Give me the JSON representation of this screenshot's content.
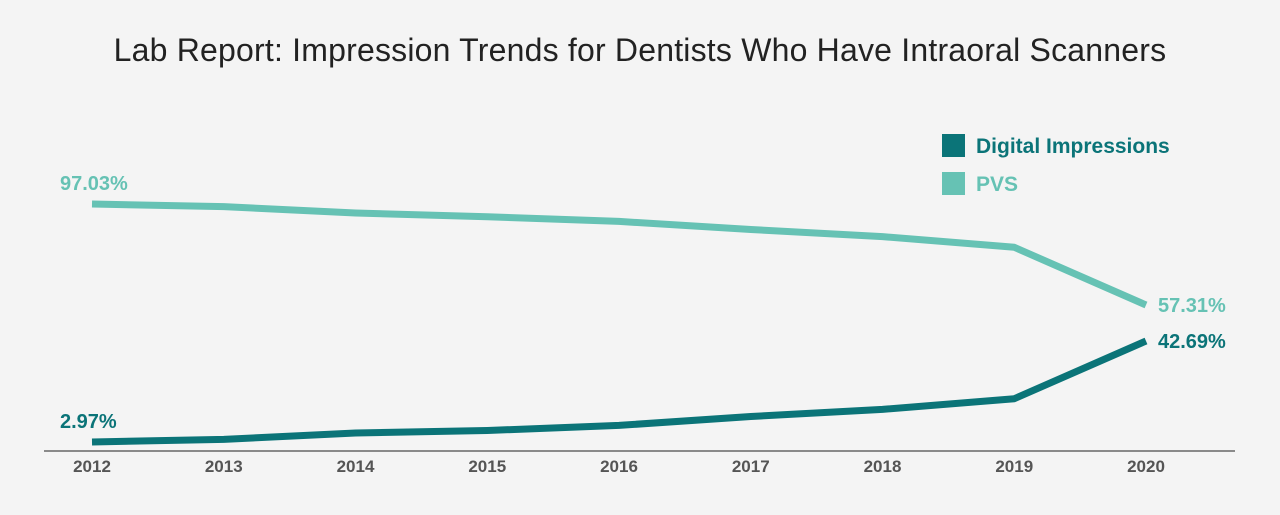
{
  "chart_data": {
    "type": "line",
    "title": "Lab Report: Impression Trends for Dentists Who Have Intraoral Scanners",
    "x": [
      "2012",
      "2013",
      "2014",
      "2015",
      "2016",
      "2017",
      "2018",
      "2019",
      "2020"
    ],
    "series": [
      {
        "name": "Digital Impressions",
        "color": "#0b7478",
        "values": [
          2.97,
          4.0,
          6.5,
          7.5,
          9.5,
          13.0,
          15.8,
          20.0,
          42.69
        ],
        "labels": {
          "first": "2.97%",
          "last": "42.69%"
        }
      },
      {
        "name": "PVS",
        "color": "#66c2b4",
        "values": [
          97.03,
          96.0,
          93.5,
          92.0,
          90.2,
          87.0,
          84.2,
          80.0,
          57.31
        ],
        "labels": {
          "first": "97.03%",
          "last": "57.31%"
        }
      }
    ],
    "legend_position": "top-right",
    "grid": false
  }
}
